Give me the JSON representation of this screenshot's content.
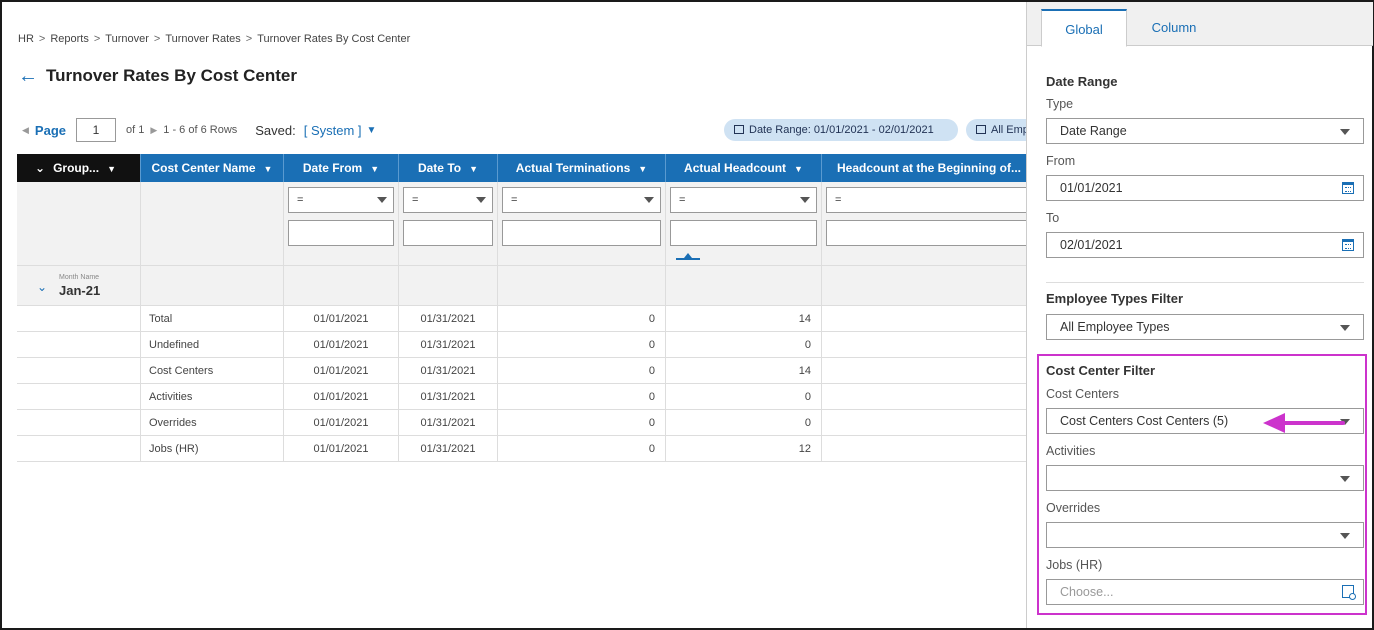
{
  "breadcrumb": [
    "HR",
    "Reports",
    "Turnover",
    "Turnover Rates",
    "Turnover Rates By Cost Center"
  ],
  "breadcrumb_sep": ">",
  "page_title": "Turnover Rates By Cost Center",
  "pager": {
    "page_label": "Page",
    "page_value": "1",
    "of_text": "of 1",
    "rows_text": "1 - 6 of 6 Rows",
    "saved_label": "Saved:",
    "saved_value": "[ System ]"
  },
  "chips": {
    "date_range": "Date Range: 01/01/2021 - 02/01/2021",
    "employees": "All Employee Types"
  },
  "grid": {
    "columns": [
      {
        "label": "Group..."
      },
      {
        "label": "Cost Center Name"
      },
      {
        "label": "Date From"
      },
      {
        "label": "Date To"
      },
      {
        "label": "Actual Terminations"
      },
      {
        "label": "Actual Headcount"
      },
      {
        "label": "Headcount at the Beginning of..."
      }
    ],
    "filter_operator": "=",
    "group": {
      "field_label": "Month Name",
      "value": "Jan-21"
    },
    "rows": [
      {
        "name": "Total",
        "from": "01/01/2021",
        "to": "01/31/2021",
        "terminations": "0",
        "headcount": "14"
      },
      {
        "name": "Undefined",
        "from": "01/01/2021",
        "to": "01/31/2021",
        "terminations": "0",
        "headcount": "0"
      },
      {
        "name": "Cost Centers",
        "from": "01/01/2021",
        "to": "01/31/2021",
        "terminations": "0",
        "headcount": "14"
      },
      {
        "name": "Activities",
        "from": "01/01/2021",
        "to": "01/31/2021",
        "terminations": "0",
        "headcount": "0"
      },
      {
        "name": "Overrides",
        "from": "01/01/2021",
        "to": "01/31/2021",
        "terminations": "0",
        "headcount": "0"
      },
      {
        "name": "Jobs (HR)",
        "from": "01/01/2021",
        "to": "01/31/2021",
        "terminations": "0",
        "headcount": "12"
      }
    ]
  },
  "panel": {
    "tabs": [
      "Global",
      "Column"
    ],
    "date_range": {
      "title": "Date Range",
      "type_label": "Type",
      "type_value": "Date Range",
      "from_label": "From",
      "from_value": "01/01/2021",
      "to_label": "To",
      "to_value": "02/01/2021"
    },
    "employee_types": {
      "title": "Employee Types Filter",
      "value": "All Employee Types"
    },
    "cost_center": {
      "title": "Cost Center Filter",
      "cost_centers_label": "Cost Centers",
      "cost_centers_value": "Cost Centers Cost Centers (5)",
      "activities_label": "Activities",
      "activities_value": "",
      "overrides_label": "Overrides",
      "overrides_value": "",
      "jobs_label": "Jobs (HR)",
      "jobs_placeholder": "Choose..."
    }
  },
  "colors": {
    "accent": "#1a6fb5",
    "highlight": "#cc33cc",
    "group_header": "#111111"
  },
  "icons": [
    "back-arrow-icon",
    "calendar-icon",
    "users-icon",
    "chevron-down-icon",
    "lookup-icon",
    "annotation-arrow-icon"
  ]
}
